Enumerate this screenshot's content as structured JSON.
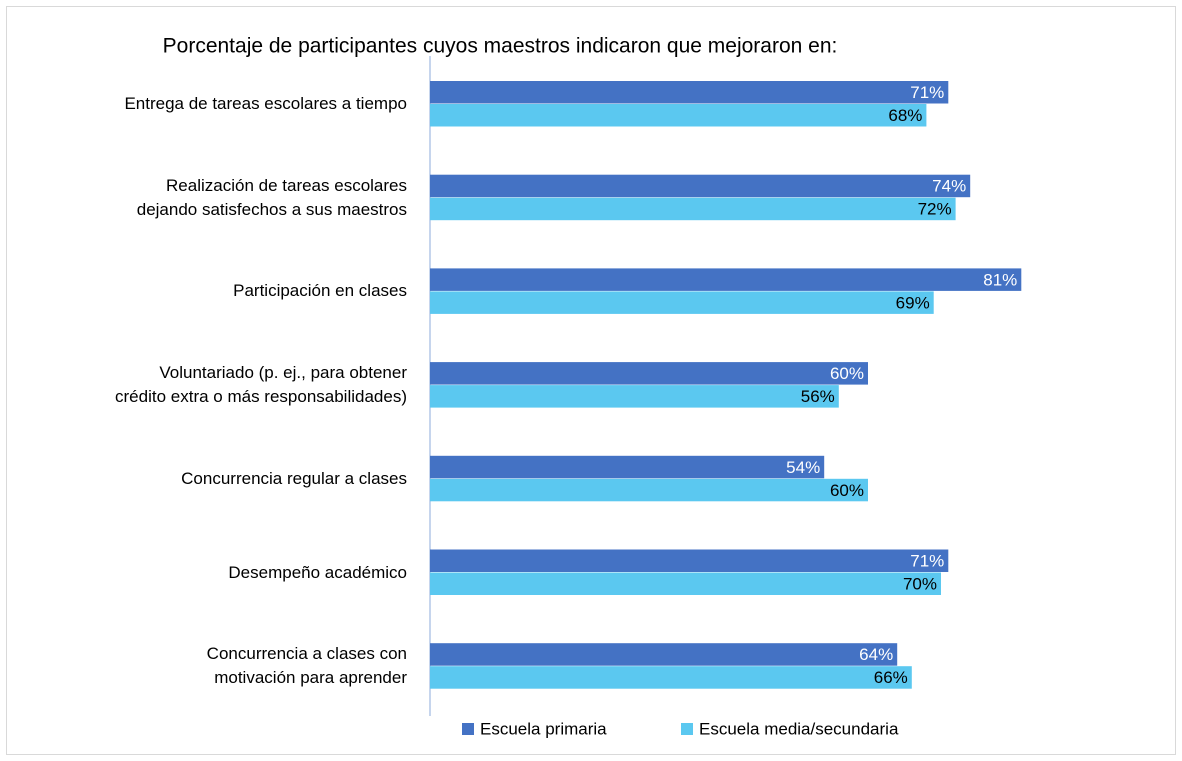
{
  "chart_data": {
    "type": "bar",
    "orientation": "horizontal",
    "title": "Porcentaje de participantes cuyos maestros indicaron que mejoraron en:",
    "categories": [
      "Entrega de tareas escolares a tiempo",
      "Realización de tareas escolares\ndejando satisfechos a sus maestros",
      "Participación en clases",
      "Voluntariado (p. ej., para obtener\ncrédito extra  o más responsabilidades)",
      "Concurrencia regular a clases",
      "Desempeño académico",
      "Concurrencia a clases con\nmotivación para aprender"
    ],
    "series": [
      {
        "name": "Escuela primaria",
        "color": "#4472c4",
        "values": [
          71,
          74,
          81,
          60,
          54,
          71,
          64
        ],
        "value_labels": [
          "71%",
          "74%",
          "81%",
          "60%",
          "54%",
          "71%",
          "64%"
        ]
      },
      {
        "name": "Escuela media/secundaria",
        "color": "#5bc8f0",
        "values": [
          68,
          72,
          69,
          56,
          60,
          70,
          66
        ],
        "value_labels": [
          "68%",
          "72%",
          "69%",
          "56%",
          "60%",
          "70%",
          "66%"
        ]
      }
    ],
    "xlim": [
      0,
      100
    ],
    "legend": "bottom"
  }
}
